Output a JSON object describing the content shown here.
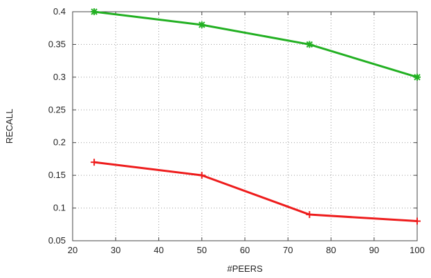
{
  "chart_data": {
    "type": "line",
    "title": "",
    "xlabel": "#PEERS",
    "ylabel": "RECALL",
    "xlim": [
      20,
      100
    ],
    "ylim": [
      0.05,
      0.4
    ],
    "grid": true,
    "x_ticks": [
      "20",
      "30",
      "40",
      "50",
      "60",
      "70",
      "80",
      "90",
      "100"
    ],
    "y_ticks": [
      "0.05",
      "0.1",
      "0.15",
      "0.2",
      "0.25",
      "0.3",
      "0.35",
      "0.4"
    ],
    "x": [
      25,
      50,
      75,
      100
    ],
    "series": [
      {
        "color": "#22b022",
        "marker": "x-star",
        "values": [
          0.4,
          0.38,
          0.35,
          0.3
        ]
      },
      {
        "color": "#ee1c1c",
        "marker": "plus",
        "values": [
          0.17,
          0.15,
          0.09,
          0.08
        ]
      }
    ]
  }
}
